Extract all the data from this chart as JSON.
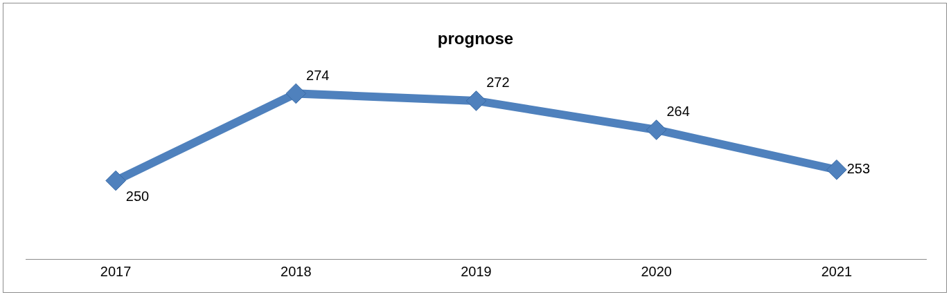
{
  "chart_data": {
    "type": "line",
    "title": "prognose",
    "categories": [
      "2017",
      "2018",
      "2019",
      "2020",
      "2021"
    ],
    "series": [
      {
        "color": "#4f81bd",
        "values": [
          250,
          274,
          272,
          264,
          253
        ]
      }
    ],
    "data_labels": true,
    "marker": "diamond",
    "line_style": "solid",
    "grid": false
  }
}
